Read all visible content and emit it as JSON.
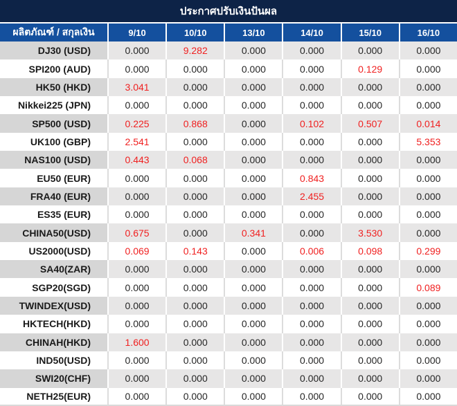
{
  "title": "ประกาศปรับเงินปันผล",
  "table": {
    "label_header": "ผลิตภัณฑ์ / สกุลเงิน",
    "date_headers": [
      "9/10",
      "10/10",
      "13/10",
      "14/10",
      "15/10",
      "16/10"
    ],
    "rows": [
      {
        "label": "DJ30 (USD)",
        "values": [
          "0.000",
          "9.282",
          "0.000",
          "0.000",
          "0.000",
          "0.000"
        ]
      },
      {
        "label": "SPI200 (AUD)",
        "values": [
          "0.000",
          "0.000",
          "0.000",
          "0.000",
          "0.129",
          "0.000"
        ]
      },
      {
        "label": "HK50 (HKD)",
        "values": [
          "3.041",
          "0.000",
          "0.000",
          "0.000",
          "0.000",
          "0.000"
        ]
      },
      {
        "label": "Nikkei225 (JPN)",
        "values": [
          "0.000",
          "0.000",
          "0.000",
          "0.000",
          "0.000",
          "0.000"
        ]
      },
      {
        "label": "SP500 (USD)",
        "values": [
          "0.225",
          "0.868",
          "0.000",
          "0.102",
          "0.507",
          "0.014"
        ]
      },
      {
        "label": "UK100 (GBP)",
        "values": [
          "2.541",
          "0.000",
          "0.000",
          "0.000",
          "0.000",
          "5.353"
        ]
      },
      {
        "label": "NAS100 (USD)",
        "values": [
          "0.443",
          "0.068",
          "0.000",
          "0.000",
          "0.000",
          "0.000"
        ]
      },
      {
        "label": "EU50 (EUR)",
        "values": [
          "0.000",
          "0.000",
          "0.000",
          "0.843",
          "0.000",
          "0.000"
        ]
      },
      {
        "label": "FRA40 (EUR)",
        "values": [
          "0.000",
          "0.000",
          "0.000",
          "2.455",
          "0.000",
          "0.000"
        ]
      },
      {
        "label": "ES35 (EUR)",
        "values": [
          "0.000",
          "0.000",
          "0.000",
          "0.000",
          "0.000",
          "0.000"
        ]
      },
      {
        "label": "CHINA50(USD)",
        "values": [
          "0.675",
          "0.000",
          "0.341",
          "0.000",
          "3.530",
          "0.000"
        ]
      },
      {
        "label": "US2000(USD)",
        "values": [
          "0.069",
          "0.143",
          "0.000",
          "0.006",
          "0.098",
          "0.299"
        ]
      },
      {
        "label": "SA40(ZAR)",
        "values": [
          "0.000",
          "0.000",
          "0.000",
          "0.000",
          "0.000",
          "0.000"
        ]
      },
      {
        "label": "SGP20(SGD)",
        "values": [
          "0.000",
          "0.000",
          "0.000",
          "0.000",
          "0.000",
          "0.089"
        ]
      },
      {
        "label": "TWINDEX(USD)",
        "values": [
          "0.000",
          "0.000",
          "0.000",
          "0.000",
          "0.000",
          "0.000"
        ]
      },
      {
        "label": "HKTECH(HKD)",
        "values": [
          "0.000",
          "0.000",
          "0.000",
          "0.000",
          "0.000",
          "0.000"
        ]
      },
      {
        "label": "CHINAH(HKD)",
        "values": [
          "1.600",
          "0.000",
          "0.000",
          "0.000",
          "0.000",
          "0.000"
        ]
      },
      {
        "label": "IND50(USD)",
        "values": [
          "0.000",
          "0.000",
          "0.000",
          "0.000",
          "0.000",
          "0.000"
        ]
      },
      {
        "label": "SWI20(CHF)",
        "values": [
          "0.000",
          "0.000",
          "0.000",
          "0.000",
          "0.000",
          "0.000"
        ]
      },
      {
        "label": "NETH25(EUR)",
        "values": [
          "0.000",
          "0.000",
          "0.000",
          "0.000",
          "0.000",
          "0.000"
        ]
      }
    ]
  },
  "colors": {
    "title_bg": "#0d2347",
    "header_bg": "#14509e",
    "zero_value": "#262626",
    "nonzero_value": "#f02020",
    "stripe_label_bg": "#d6d6d6",
    "stripe_value_bg": "#e7e6e6"
  }
}
